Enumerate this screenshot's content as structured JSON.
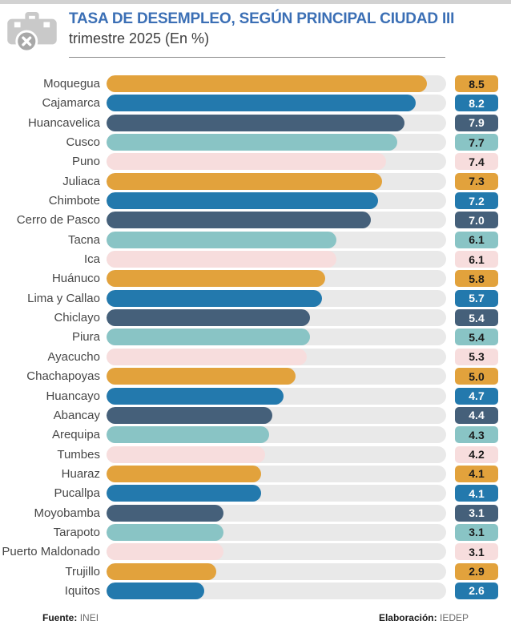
{
  "header": {
    "title": "TASA DE DESEMPLEO, SEGÚN PRINCIPAL CIUDAD III",
    "subtitle": "trimestre 2025 (En %)",
    "icon": "camera-off-icon"
  },
  "footer": {
    "source_label": "Fuente:",
    "source": "INEI",
    "elaboration_label": "Elaboración:",
    "elaboration": "IEDEP"
  },
  "colors": {
    "title_blue": "#3b6fb5",
    "track_gray": "#e9e9e9",
    "divider_gray": "#8a8a8a"
  },
  "palette": [
    {
      "name": "gold",
      "hex": "#e2a23c",
      "text": "#1a1a1a"
    },
    {
      "name": "blue",
      "hex": "#2379ad",
      "text": "#ffffff"
    },
    {
      "name": "navy",
      "hex": "#45607a",
      "text": "#ffffff"
    },
    {
      "name": "teal",
      "hex": "#89c4c5",
      "text": "#1a1a1a"
    },
    {
      "name": "pink",
      "hex": "#f7dddd",
      "text": "#1a1a1a"
    }
  ],
  "chart_data": {
    "type": "bar",
    "orientation": "horizontal",
    "title": "TASA DE DESEMPLEO, SEGÚN PRINCIPAL CIUDAD III trimestre 2025 (En %)",
    "xlabel": "",
    "ylabel": "",
    "xlim": [
      0,
      9
    ],
    "grid": false,
    "legend": false,
    "value_labels_shown": true,
    "categories": [
      "Moquegua",
      "Cajamarca",
      "Huancavelica",
      "Cusco",
      "Puno",
      "Juliaca",
      "Chimbote",
      "Cerro de Pasco",
      "Tacna",
      "Ica",
      "Huánuco",
      "Lima y Callao",
      "Chiclayo",
      "Piura",
      "Ayacucho",
      "Chachapoyas",
      "Huancayo",
      "Abancay",
      "Arequipa",
      "Tumbes",
      "Huaraz",
      "Pucallpa",
      "Moyobamba",
      "Tarapoto",
      "Puerto Maldonado",
      "Trujillo",
      "Iquitos"
    ],
    "values": [
      8.5,
      8.2,
      7.9,
      7.7,
      7.4,
      7.3,
      7.2,
      7.0,
      6.1,
      6.1,
      5.8,
      5.7,
      5.4,
      5.4,
      5.3,
      5.0,
      4.7,
      4.4,
      4.3,
      4.2,
      4.1,
      4.1,
      3.1,
      3.1,
      3.1,
      2.9,
      2.6
    ],
    "value_labels": [
      "8.5",
      "8.2",
      "7.9",
      "7.7",
      "7.4",
      "7.3",
      "7.2",
      "7.0",
      "6.1",
      "6.1",
      "5.8",
      "5.7",
      "5.4",
      "5.4",
      "5.3",
      "5.0",
      "4.7",
      "4.4",
      "4.3",
      "4.2",
      "4.1",
      "4.1",
      "3.1",
      "3.1",
      "3.1",
      "2.9",
      "2.6"
    ]
  }
}
